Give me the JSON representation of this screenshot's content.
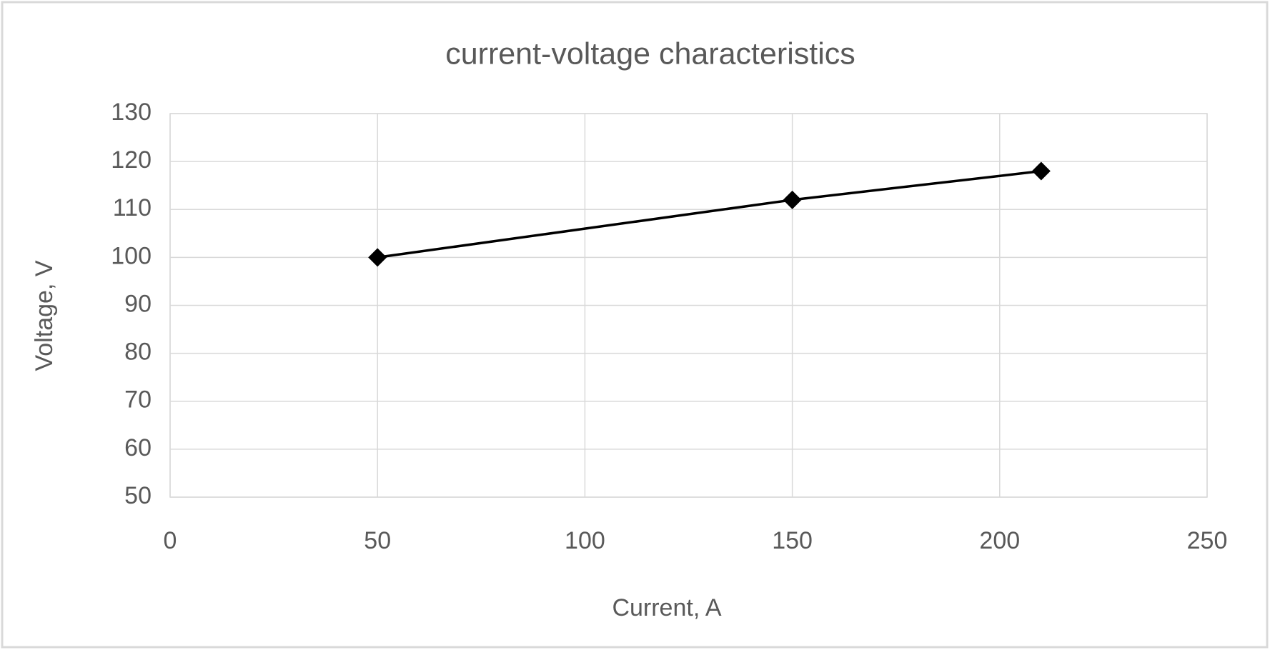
{
  "chart_data": {
    "type": "line",
    "title": "current-voltage characteristics",
    "x_label": "Current, A",
    "y_label": "Voltage, V",
    "x": [
      50,
      150,
      210
    ],
    "values": [
      100,
      112,
      118
    ],
    "color": "#000000",
    "marker": "diamond",
    "xlim": [
      0,
      250
    ],
    "xticks": [
      0,
      50,
      100,
      150,
      200,
      250
    ],
    "ylim": [
      50,
      130
    ],
    "yticks": [
      50,
      60,
      70,
      80,
      90,
      100,
      110,
      120,
      130
    ],
    "grid": true
  }
}
